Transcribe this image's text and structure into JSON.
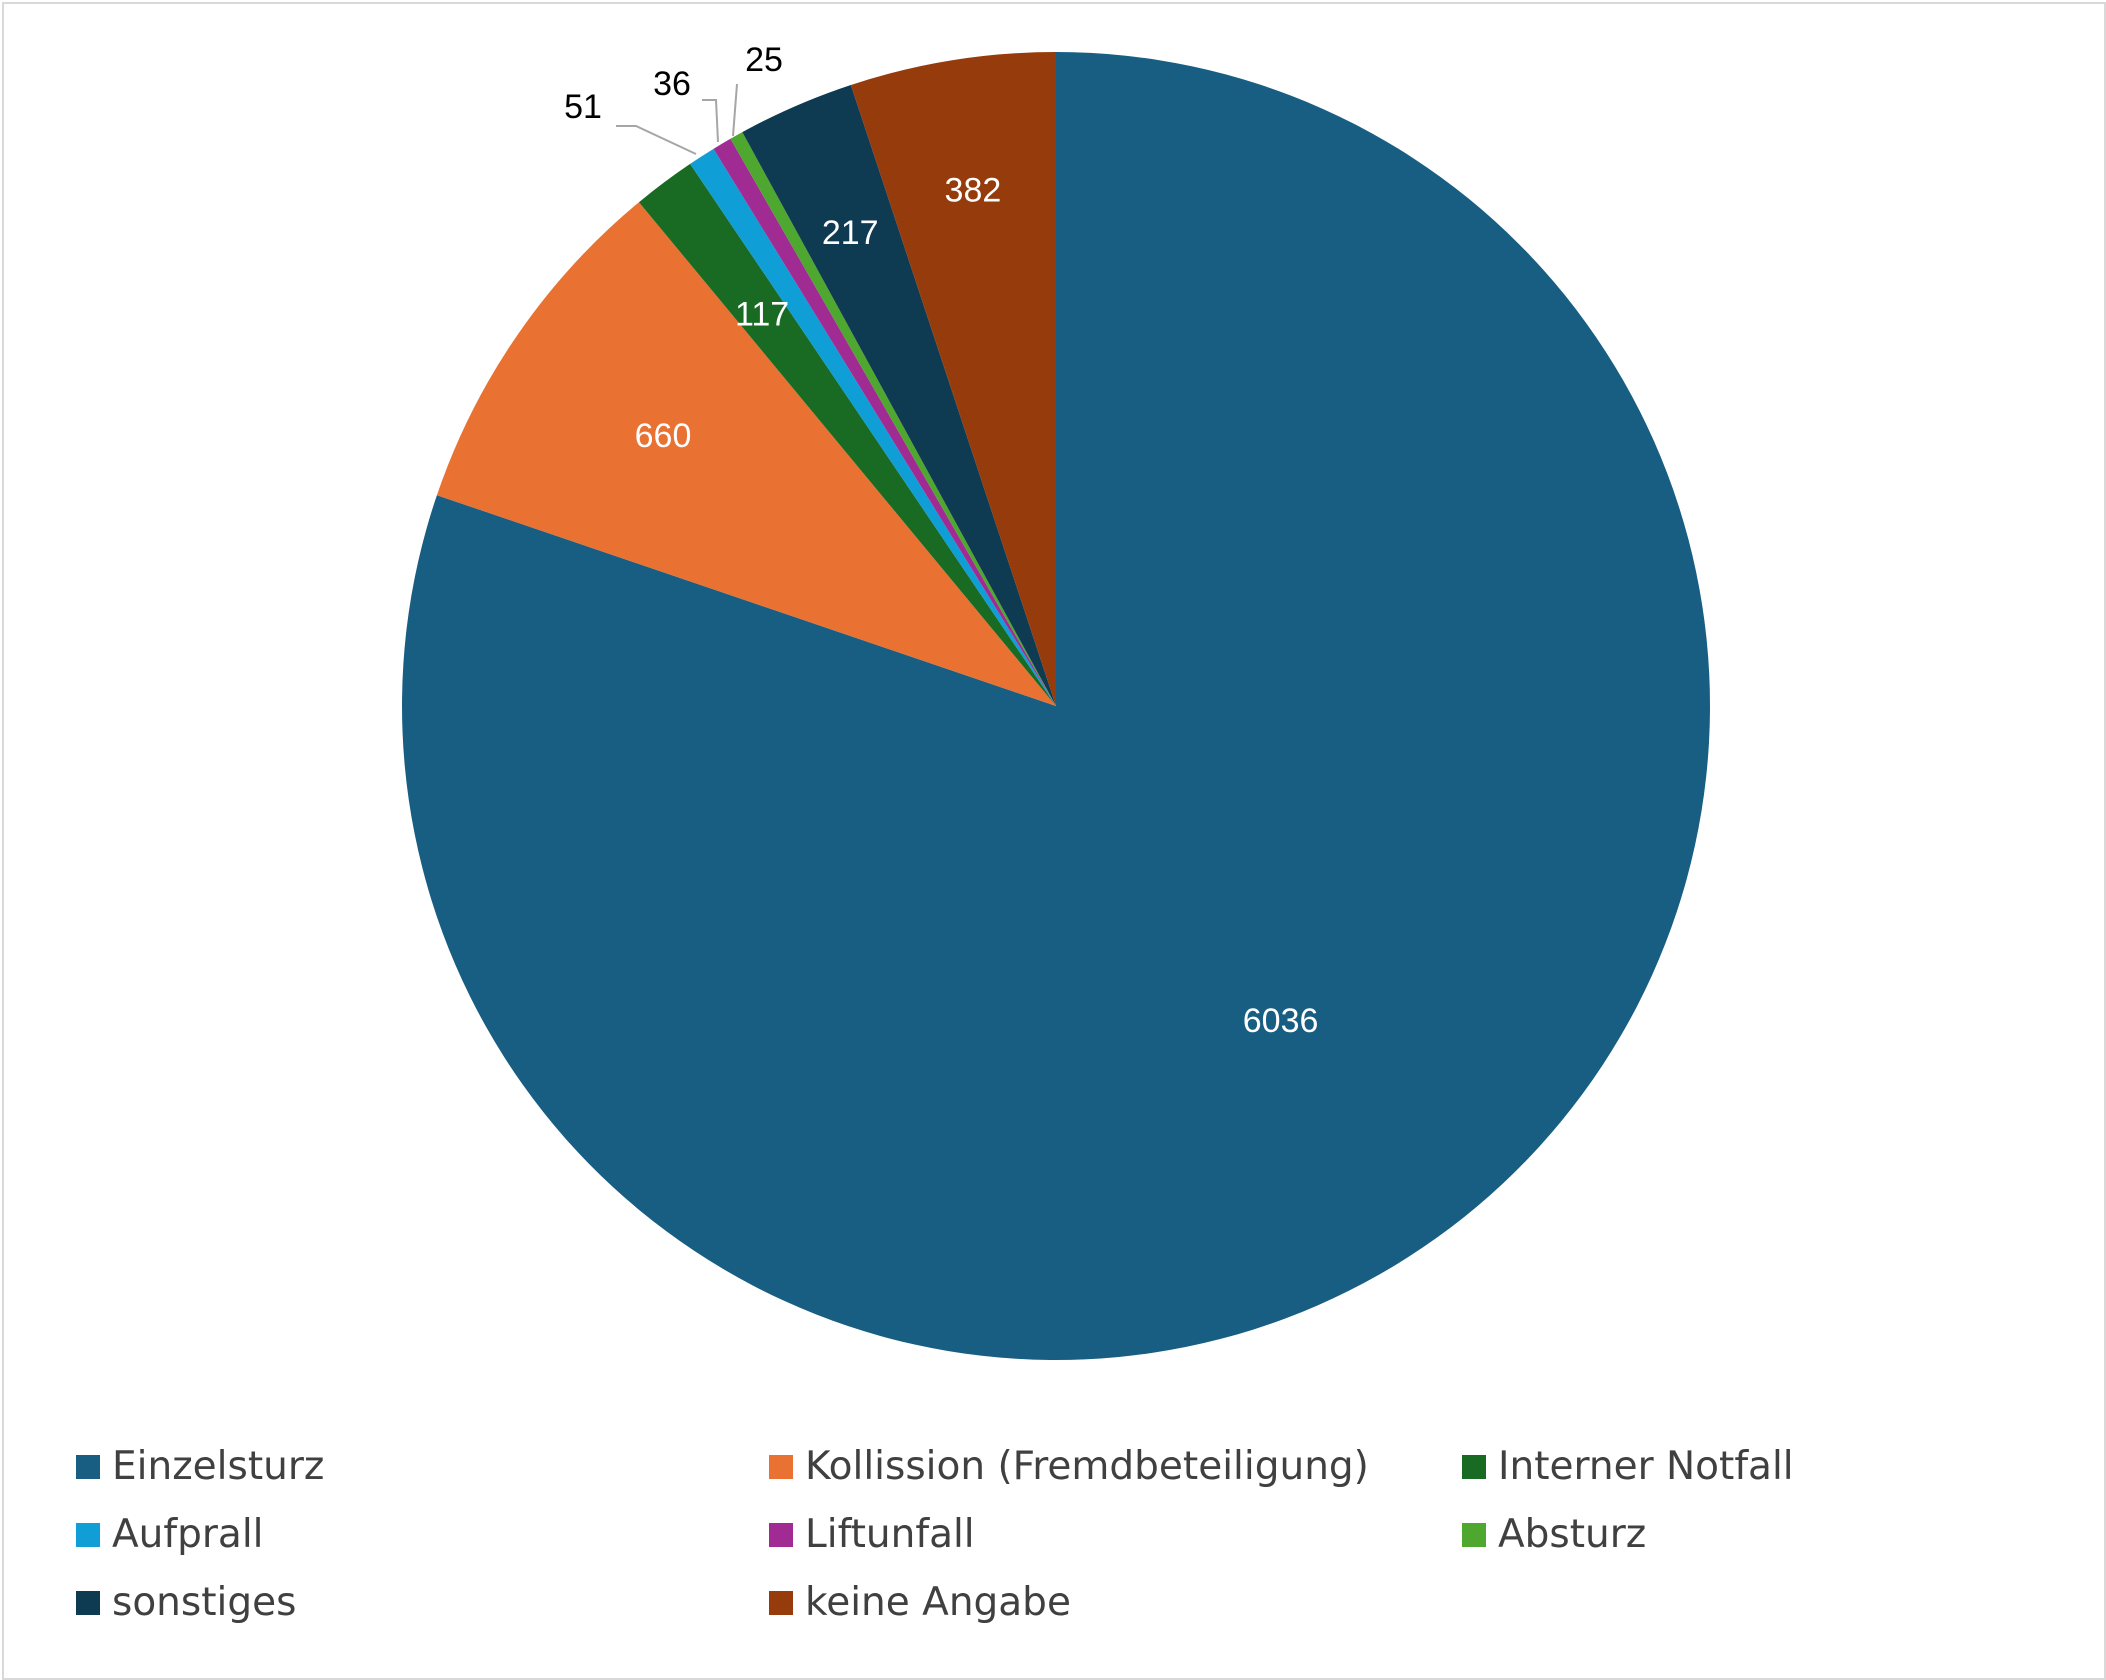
{
  "chart_data": {
    "type": "pie",
    "title": "",
    "legend_position": "bottom",
    "categories": [
      "Einzelsturz",
      "Kollission (Fremdbeteiligung)",
      "Interner Notfall",
      "Aufprall",
      "Liftunfall",
      "Absturz",
      "sonstiges",
      "keine Angabe"
    ],
    "values": [
      6036,
      660,
      117,
      51,
      36,
      25,
      217,
      382
    ],
    "value_labels": [
      "6036",
      "660",
      "117",
      "51",
      "36",
      "25",
      "217",
      "382"
    ],
    "colors": [
      "#175E82",
      "#E97132",
      "#196B24",
      "#0F9ED5",
      "#A02B93",
      "#4EA72E",
      "#0E3A52",
      "#953B0C"
    ]
  }
}
